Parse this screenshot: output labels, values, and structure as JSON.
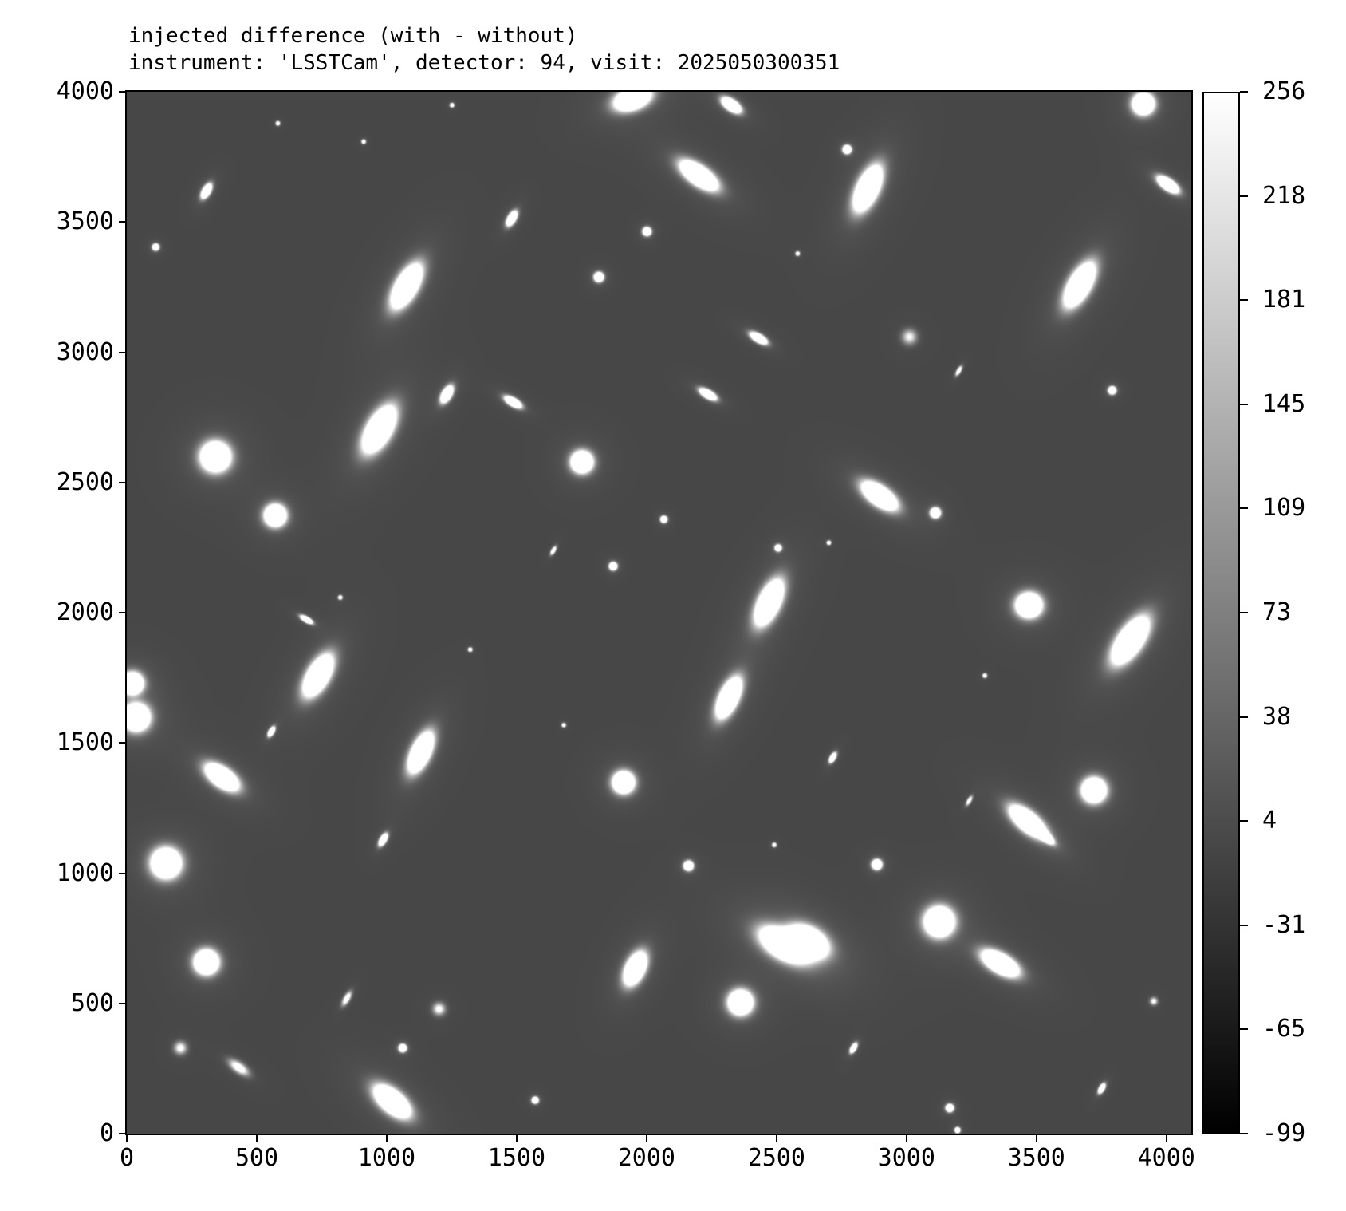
{
  "title_line1": "injected difference (with - without)",
  "title_line2": "instrument: 'LSSTCam', detector: 94, visit: 2025050300351",
  "chart_data": {
    "type": "heatmap",
    "title": "injected difference (with - without)\ninstrument: 'LSSTCam', detector: 94, visit: 2025050300351",
    "xlabel": "",
    "ylabel": "",
    "xlim": [
      0,
      4096
    ],
    "ylim": [
      0,
      4000
    ],
    "xticks": [
      "0",
      "500",
      "1000",
      "1500",
      "2000",
      "2500",
      "3000",
      "3500",
      "4000"
    ],
    "yticks": [
      "0",
      "500",
      "1000",
      "1500",
      "2000",
      "2500",
      "3000",
      "3500",
      "4000"
    ],
    "colormap": "gray",
    "colorbar": {
      "vmin": -99,
      "vmax": 256,
      "ticks": [
        "-99",
        "-65",
        "-31",
        "4",
        "38",
        "73",
        "109",
        "145",
        "181",
        "218",
        "256"
      ]
    },
    "background_value": 0,
    "grid": false,
    "sources_columns": [
      "x",
      "y",
      "a",
      "b",
      "angle_deg",
      "peak"
    ],
    "sources": [
      [
        340,
        2600,
        55,
        55,
        0,
        256
      ],
      [
        570,
        2375,
        40,
        40,
        0,
        256
      ],
      [
        1750,
        2580,
        40,
        40,
        0,
        256
      ],
      [
        150,
        1040,
        55,
        55,
        0,
        256
      ],
      [
        305,
        660,
        45,
        45,
        0,
        256
      ],
      [
        1910,
        1350,
        40,
        40,
        0,
        256
      ],
      [
        2360,
        505,
        45,
        45,
        0,
        256
      ],
      [
        3125,
        815,
        55,
        55,
        0,
        256
      ],
      [
        3470,
        2030,
        48,
        45,
        0,
        256
      ],
      [
        3720,
        1320,
        45,
        45,
        0,
        256
      ],
      [
        3910,
        3955,
        40,
        40,
        0,
        256
      ],
      [
        35,
        1600,
        50,
        50,
        0,
        256
      ],
      [
        20,
        1730,
        40,
        40,
        0,
        256
      ],
      [
        1075,
        3255,
        90,
        40,
        60,
        256
      ],
      [
        970,
        2705,
        95,
        45,
        60,
        256
      ],
      [
        735,
        1760,
        85,
        40,
        60,
        256
      ],
      [
        1130,
        1465,
        80,
        35,
        65,
        256
      ],
      [
        365,
        1370,
        70,
        35,
        -35,
        256
      ],
      [
        2200,
        3680,
        80,
        35,
        -35,
        256
      ],
      [
        2850,
        3630,
        90,
        40,
        65,
        256
      ],
      [
        3665,
        3260,
        90,
        40,
        60,
        256
      ],
      [
        3860,
        1895,
        100,
        45,
        55,
        256
      ],
      [
        2470,
        2040,
        90,
        40,
        65,
        256
      ],
      [
        2315,
        1675,
        80,
        35,
        65,
        256
      ],
      [
        2895,
        2450,
        75,
        35,
        -35,
        256
      ],
      [
        3465,
        1200,
        80,
        35,
        -40,
        256
      ],
      [
        3530,
        1145,
        40,
        15,
        -40,
        256
      ],
      [
        3360,
        655,
        75,
        35,
        -30,
        256
      ],
      [
        2530,
        725,
        100,
        50,
        -30,
        256
      ],
      [
        2620,
        740,
        80,
        50,
        -30,
        256
      ],
      [
        1955,
        635,
        65,
        35,
        65,
        256
      ],
      [
        1020,
        125,
        80,
        40,
        -40,
        256
      ],
      [
        1945,
        3975,
        70,
        40,
        20,
        256
      ],
      [
        2325,
        3950,
        40,
        20,
        -35,
        256
      ],
      [
        4005,
        3645,
        45,
        20,
        -35,
        256
      ],
      [
        305,
        3620,
        30,
        15,
        60,
        230
      ],
      [
        1480,
        3515,
        30,
        15,
        60,
        230
      ],
      [
        1230,
        2840,
        35,
        18,
        60,
        230
      ],
      [
        1485,
        2810,
        35,
        15,
        -30,
        230
      ],
      [
        2235,
        2840,
        35,
        15,
        -30,
        230
      ],
      [
        2430,
        3055,
        35,
        15,
        -30,
        230
      ],
      [
        985,
        1130,
        25,
        12,
        60,
        220
      ],
      [
        690,
        1975,
        25,
        10,
        -30,
        220
      ],
      [
        555,
        1545,
        20,
        10,
        60,
        210
      ],
      [
        2715,
        1445,
        20,
        10,
        60,
        210
      ],
      [
        3750,
        175,
        20,
        10,
        60,
        210
      ],
      [
        2795,
        330,
        20,
        10,
        60,
        210
      ],
      [
        430,
        255,
        45,
        20,
        -35,
        90
      ],
      [
        845,
        520,
        30,
        12,
        60,
        100
      ],
      [
        2770,
        3780,
        15,
        15,
        0,
        256
      ],
      [
        2000,
        3465,
        15,
        15,
        0,
        256
      ],
      [
        1815,
        3290,
        17,
        17,
        0,
        256
      ],
      [
        110,
        3405,
        12,
        12,
        0,
        240
      ],
      [
        3790,
        2855,
        14,
        14,
        0,
        240
      ],
      [
        3110,
        2385,
        18,
        18,
        0,
        256
      ],
      [
        2065,
        2360,
        12,
        12,
        0,
        230
      ],
      [
        2505,
        2250,
        12,
        12,
        0,
        230
      ],
      [
        1870,
        2180,
        14,
        14,
        0,
        250
      ],
      [
        2160,
        1030,
        17,
        17,
        0,
        256
      ],
      [
        2885,
        1035,
        18,
        18,
        0,
        256
      ],
      [
        1060,
        330,
        14,
        14,
        0,
        240
      ],
      [
        1570,
        130,
        12,
        12,
        0,
        230
      ],
      [
        3165,
        100,
        14,
        14,
        0,
        240
      ],
      [
        3195,
        15,
        10,
        10,
        0,
        220
      ],
      [
        205,
        330,
        25,
        25,
        0,
        70
      ],
      [
        1200,
        480,
        25,
        25,
        0,
        70
      ],
      [
        3010,
        3060,
        30,
        30,
        0,
        60
      ],
      [
        3950,
        510,
        15,
        15,
        0,
        70
      ],
      [
        1250,
        3950,
        8,
        8,
        0,
        150
      ],
      [
        580,
        3880,
        8,
        8,
        0,
        140
      ],
      [
        910,
        3810,
        8,
        8,
        0,
        140
      ],
      [
        2580,
        3380,
        8,
        8,
        0,
        140
      ],
      [
        3200,
        2930,
        20,
        8,
        60,
        120
      ],
      [
        1640,
        2240,
        18,
        8,
        60,
        120
      ],
      [
        2700,
        2270,
        8,
        8,
        0,
        140
      ],
      [
        820,
        2060,
        8,
        8,
        0,
        140
      ],
      [
        1320,
        1860,
        8,
        8,
        0,
        140
      ],
      [
        3300,
        1760,
        8,
        8,
        0,
        140
      ],
      [
        1680,
        1570,
        8,
        8,
        0,
        120
      ],
      [
        2490,
        1110,
        8,
        8,
        0,
        140
      ],
      [
        3240,
        1280,
        20,
        8,
        60,
        100
      ]
    ]
  }
}
